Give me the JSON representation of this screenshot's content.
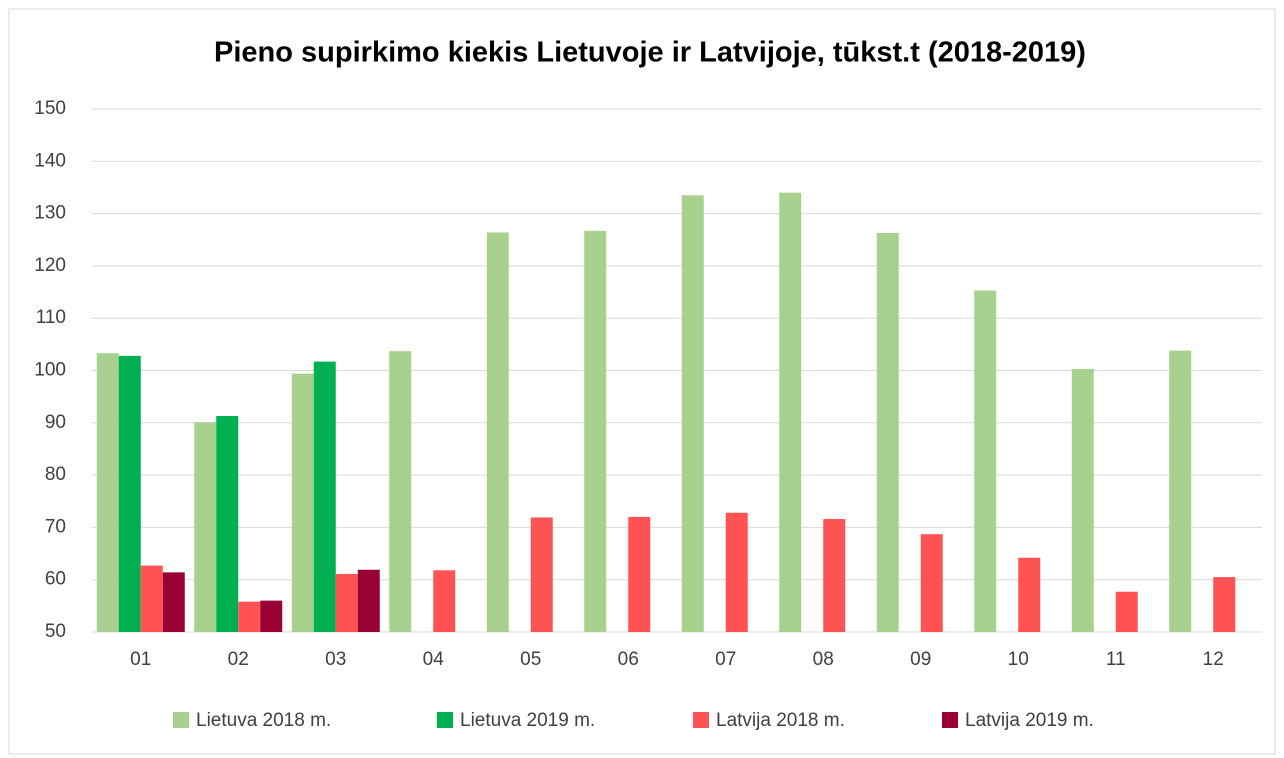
{
  "chart_data": {
    "type": "bar",
    "title": "Pieno supirkimo kiekis Lietuvoje ir Latvijoje, tūkst.t (2018-2019)",
    "categories": [
      "01",
      "02",
      "03",
      "04",
      "05",
      "06",
      "07",
      "08",
      "09",
      "10",
      "11",
      "12"
    ],
    "series": [
      {
        "name": "Lietuva 2018 m.",
        "color": "#a9d18e",
        "values": [
          103.3,
          90.1,
          99.4,
          103.7,
          126.4,
          126.7,
          133.5,
          134.0,
          126.3,
          115.3,
          100.3,
          103.8
        ]
      },
      {
        "name": "Lietuva 2019 m.",
        "color": "#00b050",
        "values": [
          102.8,
          91.3,
          101.7,
          null,
          null,
          null,
          null,
          null,
          null,
          null,
          null,
          null
        ]
      },
      {
        "name": "Latvija 2018 m.",
        "color": "#ff5353",
        "values": [
          62.7,
          55.8,
          61.1,
          61.8,
          71.9,
          72.0,
          72.8,
          71.6,
          68.7,
          64.2,
          57.7,
          60.5
        ]
      },
      {
        "name": "Latvija 2019 m.",
        "color": "#990033",
        "values": [
          61.4,
          56.0,
          61.9,
          null,
          null,
          null,
          null,
          null,
          null,
          null,
          null,
          null
        ]
      }
    ],
    "ylim": [
      50,
      150
    ],
    "yticks": [
      50,
      60,
      70,
      80,
      90,
      100,
      110,
      120,
      130,
      140,
      150
    ],
    "grid": true,
    "legend": "bottom"
  }
}
